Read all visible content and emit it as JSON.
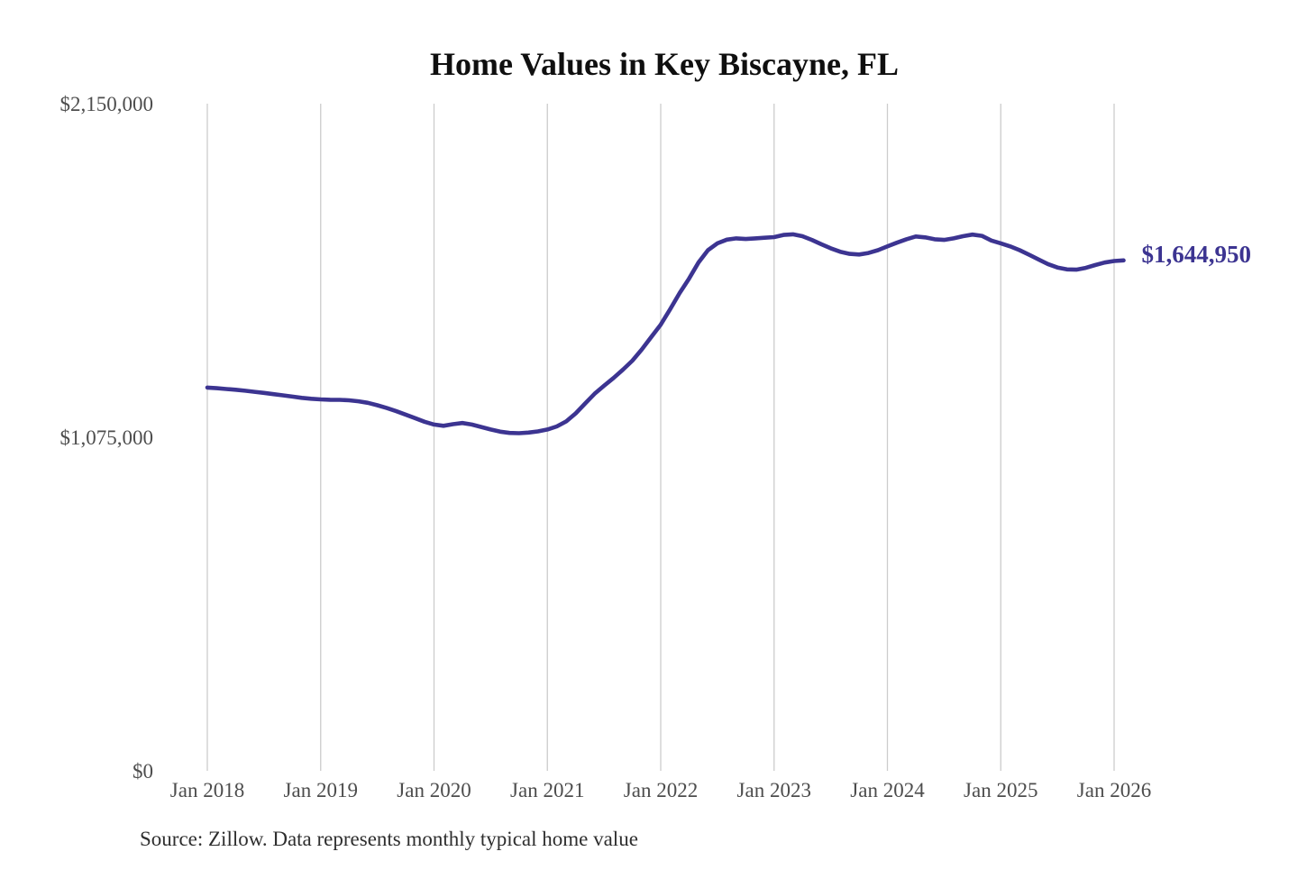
{
  "chart": {
    "title": "Home Values in Key Biscayne, FL",
    "source_note": "Source: Zillow. Data represents monthly typical home value",
    "annotation": {
      "label": "$1,644,950"
    },
    "colors": {
      "line": "#3c3491",
      "annotation_text": "#3c3491",
      "grid": "#cccccc",
      "axis_text": "#4d4d4d",
      "title_text": "#0f0f0f",
      "source_text": "#2e2e2e",
      "background": "#ffffff"
    }
  },
  "chart_data": {
    "type": "line",
    "title": "Home Values in Key Biscayne, FL",
    "xlabel": "",
    "ylabel": "",
    "ylim": [
      0,
      2150000
    ],
    "grid": "vertical-only",
    "legend": "none",
    "x_start": "2018-01",
    "x_end": "2026-02",
    "x_interval_months": 1,
    "x_tick_labels": [
      "Jan 2018",
      "Jan 2019",
      "Jan 2020",
      "Jan 2021",
      "Jan 2022",
      "Jan 2023",
      "Jan 2024",
      "Jan 2025",
      "Jan 2026"
    ],
    "y_ticks": [
      {
        "label": "$0",
        "value": 0
      },
      {
        "label": "$1,075,000",
        "value": 1075000
      },
      {
        "label": "$2,150,000",
        "value": 2150000
      }
    ],
    "last_value": 1644950,
    "last_value_label": "$1,644,950",
    "series": [
      {
        "name": "Monthly typical home value",
        "values": [
          1235000,
          1233000,
          1230500,
          1228000,
          1225000,
          1221500,
          1218000,
          1214000,
          1210000,
          1206000,
          1202000,
          1199000,
          1197000,
          1196000,
          1195500,
          1194000,
          1191000,
          1186000,
          1178000,
          1169000,
          1159000,
          1148000,
          1136500,
          1125000,
          1116000,
          1112000,
          1117000,
          1121000,
          1116000,
          1108000,
          1100000,
          1093000,
          1089000,
          1088000,
          1090000,
          1094000,
          1100000,
          1110000,
          1126000,
          1152000,
          1184000,
          1215000,
          1241000,
          1266000,
          1293000,
          1322000,
          1358000,
          1398000,
          1438000,
          1488000,
          1540000,
          1586000,
          1638000,
          1678000,
          1700000,
          1712000,
          1716000,
          1714000,
          1716000,
          1718000,
          1720000,
          1727000,
          1729000,
          1723000,
          1711000,
          1697000,
          1684000,
          1673000,
          1666000,
          1664000,
          1669000,
          1678000,
          1690000,
          1702000,
          1713000,
          1722000,
          1719000,
          1713000,
          1711000,
          1716000,
          1723000,
          1728000,
          1724000,
          1709000,
          1700000,
          1690000,
          1678000,
          1663000,
          1648000,
          1633000,
          1622000,
          1616000,
          1615000,
          1621000,
          1630000,
          1638000,
          1643000,
          1644950
        ]
      }
    ]
  }
}
